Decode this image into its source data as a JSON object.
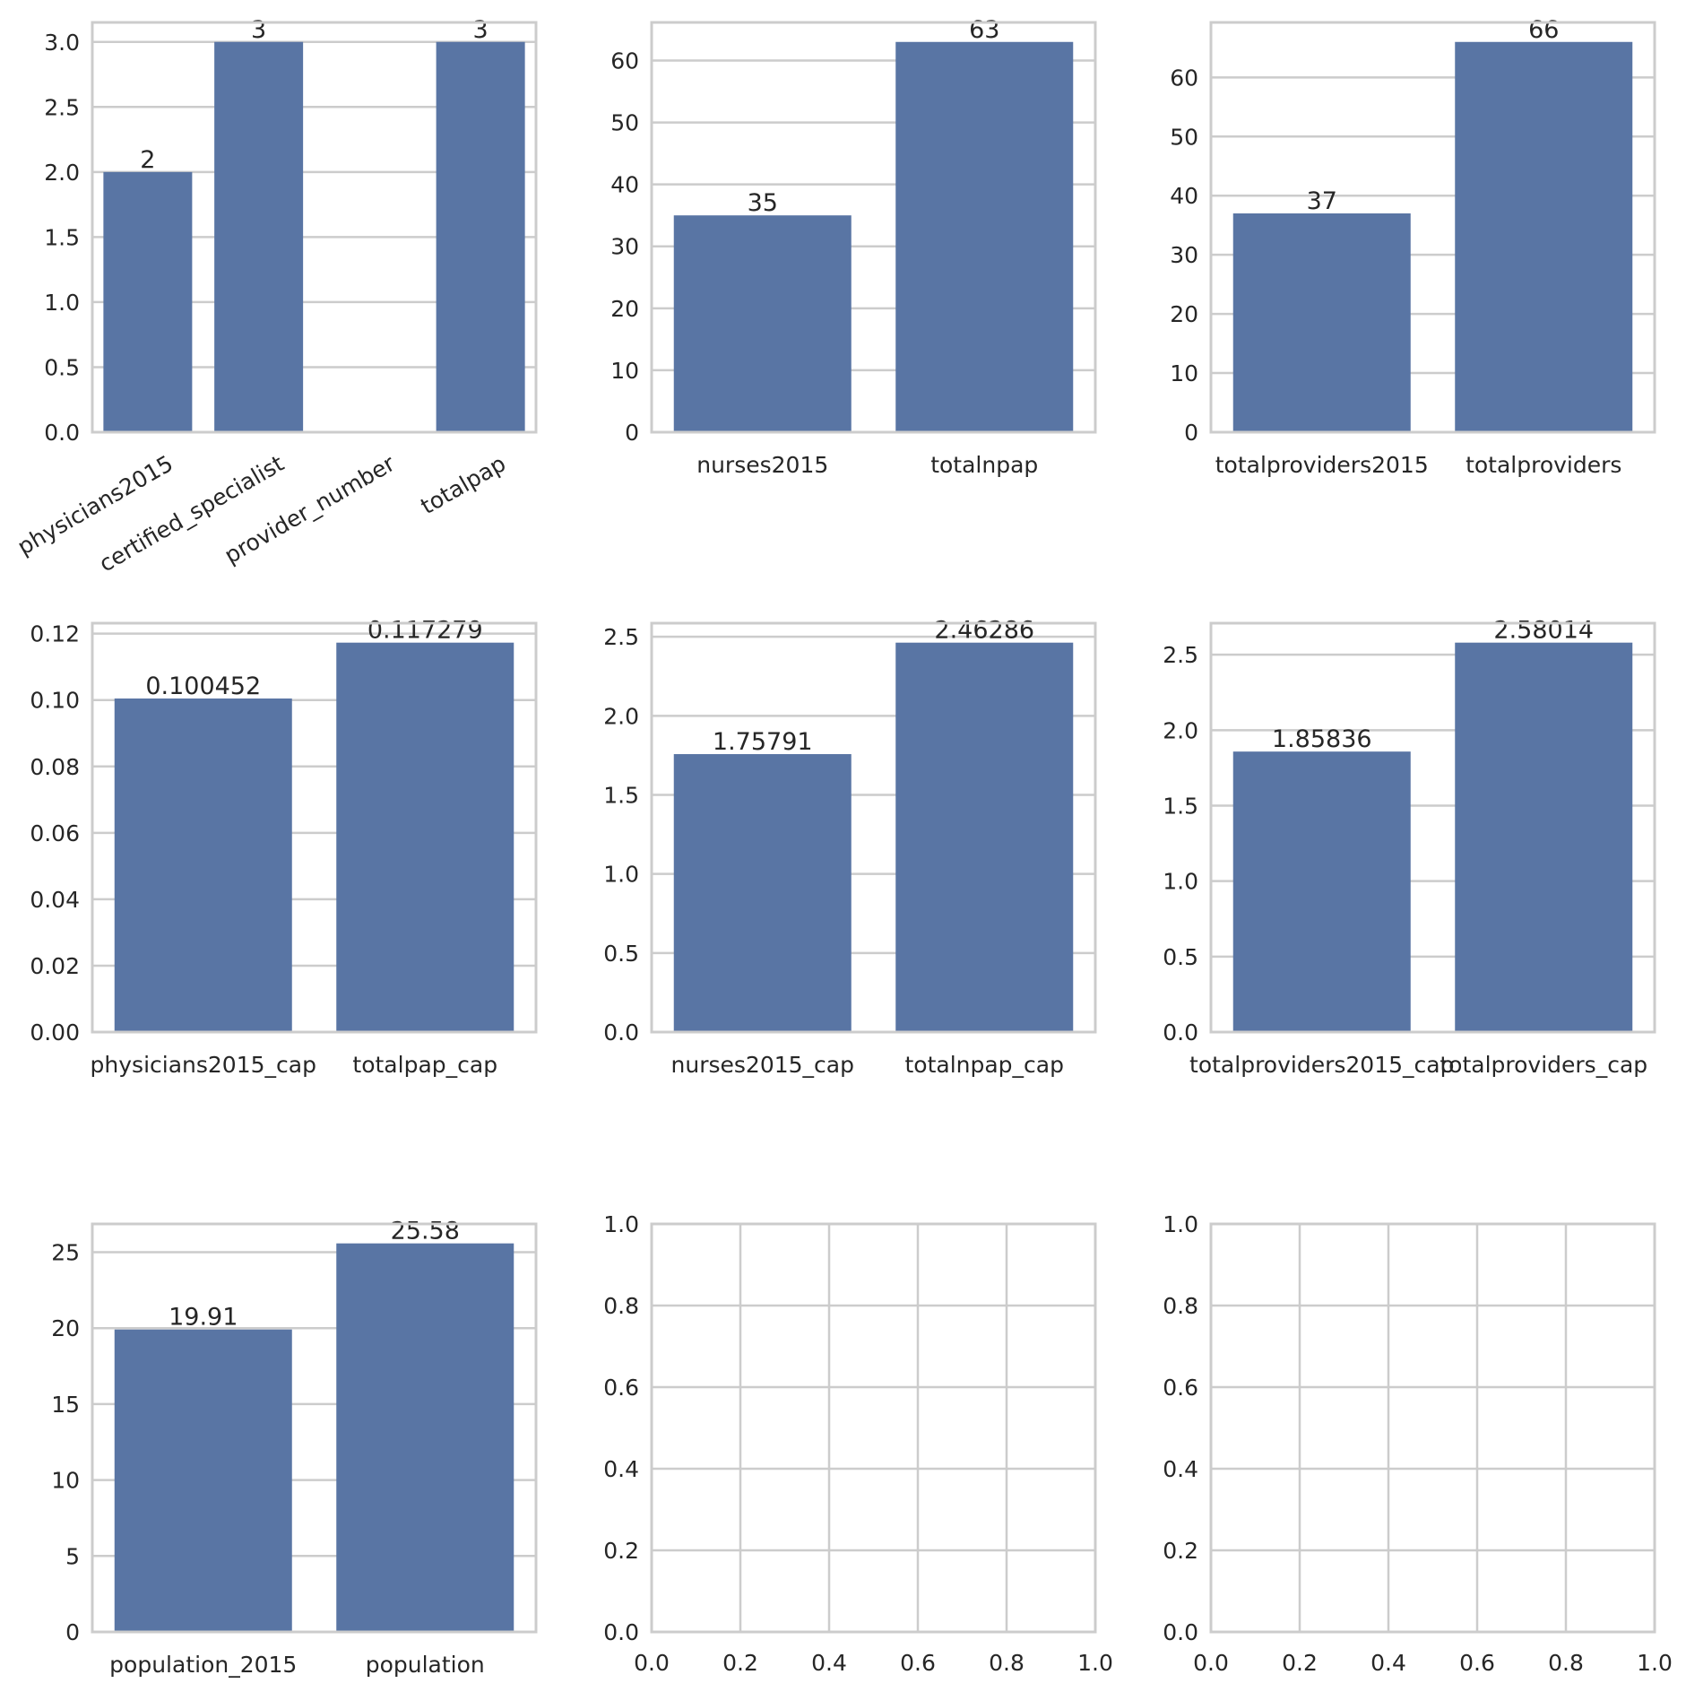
{
  "colors": {
    "bar": "#5975a4",
    "grid": "#cccccc",
    "text": "#262626",
    "background": "#ffffff"
  },
  "chart_data": [
    {
      "type": "bar",
      "categories": [
        "physicians2015",
        "certified_specialist",
        "provider_number",
        "totalpap"
      ],
      "values": [
        2,
        3,
        null,
        3
      ],
      "data_labels": [
        "2",
        "3",
        "",
        "3"
      ],
      "yticks": [
        "0.0",
        "0.5",
        "1.0",
        "1.5",
        "2.0",
        "2.5",
        "3.0"
      ],
      "ylim": [
        0,
        3.15
      ],
      "xtick_rotation": 30,
      "grid": true
    },
    {
      "type": "bar",
      "categories": [
        "nurses2015",
        "totalnpap"
      ],
      "values": [
        35,
        63
      ],
      "data_labels": [
        "35",
        "63"
      ],
      "yticks": [
        "0",
        "10",
        "20",
        "30",
        "40",
        "50",
        "60"
      ],
      "ylim": [
        0,
        66.15
      ],
      "grid": true
    },
    {
      "type": "bar",
      "categories": [
        "totalproviders2015",
        "totalproviders"
      ],
      "values": [
        37,
        66
      ],
      "data_labels": [
        "37",
        "66"
      ],
      "yticks": [
        "0",
        "10",
        "20",
        "30",
        "40",
        "50",
        "60"
      ],
      "ylim": [
        0,
        69.3
      ],
      "grid": true
    },
    {
      "type": "bar",
      "categories": [
        "physicians2015_cap",
        "totalpap_cap"
      ],
      "values": [
        0.100452,
        0.117279
      ],
      "data_labels": [
        "0.100452",
        "0.117279"
      ],
      "yticks": [
        "0.00",
        "0.02",
        "0.04",
        "0.06",
        "0.08",
        "0.10",
        "0.12"
      ],
      "ylim": [
        0,
        0.12314
      ],
      "grid": true
    },
    {
      "type": "bar",
      "categories": [
        "nurses2015_cap",
        "totalnpap_cap"
      ],
      "values": [
        1.75791,
        2.46286
      ],
      "data_labels": [
        "1.75791",
        "2.46286"
      ],
      "yticks": [
        "0.0",
        "0.5",
        "1.0",
        "1.5",
        "2.0",
        "2.5"
      ],
      "ylim": [
        0,
        2.586
      ],
      "grid": true
    },
    {
      "type": "bar",
      "categories": [
        "totalproviders2015_cap",
        "totalproviders_cap"
      ],
      "values": [
        1.85836,
        2.58014
      ],
      "data_labels": [
        "1.85836",
        "2.58014"
      ],
      "yticks": [
        "0.0",
        "0.5",
        "1.0",
        "1.5",
        "2.0",
        "2.5"
      ],
      "ylim": [
        0,
        2.709
      ],
      "grid": true
    },
    {
      "type": "bar",
      "categories": [
        "population_2015",
        "population"
      ],
      "values": [
        19.91,
        25.58
      ],
      "data_labels": [
        "19.91",
        "25.58"
      ],
      "yticks": [
        "0",
        "5",
        "10",
        "15",
        "20",
        "25"
      ],
      "ylim": [
        0,
        26.86
      ],
      "grid": true
    },
    {
      "type": "empty",
      "xticks": [
        "0.0",
        "0.2",
        "0.4",
        "0.6",
        "0.8",
        "1.0"
      ],
      "yticks": [
        "0.0",
        "0.2",
        "0.4",
        "0.6",
        "0.8",
        "1.0"
      ],
      "xlim": [
        0,
        1
      ],
      "ylim": [
        0,
        1
      ],
      "grid": true
    },
    {
      "type": "empty",
      "xticks": [
        "0.0",
        "0.2",
        "0.4",
        "0.6",
        "0.8",
        "1.0"
      ],
      "yticks": [
        "0.0",
        "0.2",
        "0.4",
        "0.6",
        "0.8",
        "1.0"
      ],
      "xlim": [
        0,
        1
      ],
      "ylim": [
        0,
        1
      ],
      "grid": true
    }
  ]
}
